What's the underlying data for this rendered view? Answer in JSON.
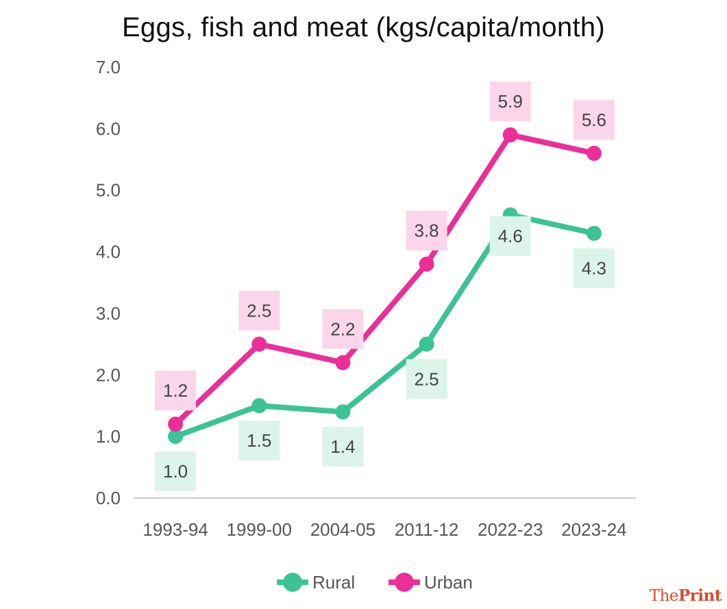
{
  "chart_data": {
    "type": "line",
    "title": "Eggs, fish and meat (kgs/capita/month)",
    "categories": [
      "1993-94",
      "1999-00",
      "2004-05",
      "2011-12",
      "2022-23",
      "2023-24"
    ],
    "series": [
      {
        "name": "Rural",
        "values": [
          1.0,
          1.5,
          1.4,
          2.5,
          4.6,
          4.3
        ],
        "color": "#3cc394",
        "label_bg": "#dcf4ea",
        "labels": [
          "1.0",
          "1.5",
          "1.4",
          "2.5",
          "4.6",
          "4.3"
        ]
      },
      {
        "name": "Urban",
        "values": [
          1.2,
          2.5,
          2.2,
          3.8,
          5.9,
          5.6
        ],
        "color": "#ec2e99",
        "label_bg": "#fbd6ea",
        "labels": [
          "1.2",
          "2.5",
          "2.2",
          "3.8",
          "5.9",
          "5.6"
        ]
      }
    ],
    "ylim": [
      0,
      7
    ],
    "yticks": [
      "0.0",
      "1.0",
      "2.0",
      "3.0",
      "4.0",
      "5.0",
      "6.0",
      "7.0"
    ],
    "grid": false,
    "legend": "bottom"
  },
  "logo": {
    "the": "The",
    "print": "Print"
  }
}
